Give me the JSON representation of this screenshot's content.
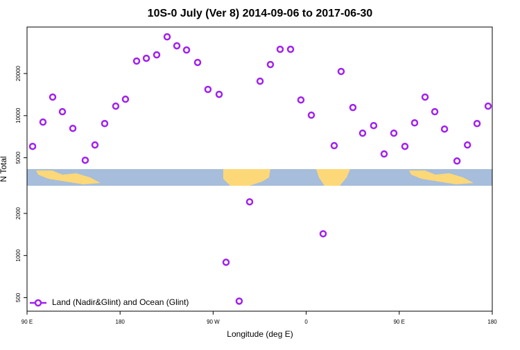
{
  "chart_data": {
    "type": "scatter",
    "title": "10S-0 July (Ver 8)   2014-09-06 to 2017-06-30",
    "x_label": "Longitude (deg E)",
    "y_label": "N Total",
    "y_log": true,
    "xlim": [
      90,
      540
    ],
    "ylim": [
      400,
      43000
    ],
    "xticks": [
      {
        "value": 90,
        "label": "90 E"
      },
      180,
      {
        "value": 270,
        "label": "90 W"
      },
      {
        "value": 360,
        "label": "0"
      },
      {
        "value": 450,
        "label": "90 E"
      },
      {
        "value": 540,
        "label": "180"
      }
    ],
    "yticks": [
      500,
      1000,
      2000,
      5000,
      10000,
      20000
    ],
    "series": [
      {
        "name": "Land (Nadir&Glint) and Ocean (Glint)",
        "color": "#a020f0",
        "x": [
          95.4,
          105.4,
          114.8,
          124.2,
          134.3,
          146.3,
          155.7,
          165.1,
          175.8,
          185.2,
          196,
          205.4,
          215.4,
          225.5,
          234.9,
          244.3,
          255,
          265,
          275.8,
          282.5,
          295.2,
          305.3,
          315.4,
          325.4,
          334.8,
          344.9,
          354.9,
          365,
          376.4,
          387.1,
          393.8,
          405.2,
          414.6,
          425.3,
          435.4,
          444.8,
          455.5,
          464.9,
          475,
          484.4,
          493.8,
          505.9,
          516,
          525.3,
          536
        ],
        "values": [
          6030,
          8990,
          13570,
          10670,
          8110,
          4800,
          6170,
          8780,
          11690,
          13100,
          24560,
          25700,
          27200,
          36600,
          31560,
          29460,
          24000,
          15400,
          14200,
          895,
          472,
          2420,
          17630,
          23200,
          29800,
          29800,
          12950,
          10080,
          1430,
          6100,
          20700,
          11430,
          7490,
          8490,
          5320,
          7490,
          6030,
          8880,
          13570,
          10670,
          8020,
          4740,
          6170,
          8780,
          11690
        ]
      }
    ],
    "legend": "bottom-left"
  }
}
